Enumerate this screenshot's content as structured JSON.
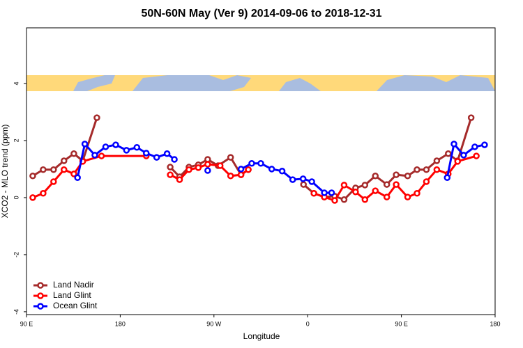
{
  "chart_data": {
    "type": "line",
    "title": "50N-60N May (Ver 9)   2014-09-06 to 2018-12-31",
    "x_label": "Longitude",
    "y_label": "XCO2 - MLO trend (ppm)",
    "xlim": [
      90,
      540
    ],
    "ylim": [
      -4.1,
      5.95
    ],
    "xticks": [
      {
        "value": 90,
        "label": "90 E"
      },
      {
        "value": 180,
        "label": "180"
      },
      {
        "value": 270,
        "label": "90 W"
      },
      {
        "value": 360,
        "label": "0"
      },
      {
        "value": 450,
        "label": "90 E"
      },
      {
        "value": 540,
        "label": "180"
      }
    ],
    "yticks": [
      -4,
      -2,
      0,
      2,
      4
    ],
    "legend": "bottom-left",
    "series": [
      {
        "name": "Land Nadir",
        "color": "#a52a2a",
        "x": [
          96,
          106,
          116,
          126,
          135.5,
          144,
          157.6,
          190,
          228,
          237,
          246,
          255,
          264,
          274,
          286,
          296,
          303,
          330,
          356,
          366,
          376,
          386,
          395,
          406,
          415,
          425,
          436,
          445,
          456,
          465,
          474,
          484,
          495,
          504,
          517
        ],
        "values": [
          0.76,
          0.98,
          0.98,
          1.29,
          1.54,
          1.29,
          2.8,
          null,
          1.07,
          0.73,
          1.07,
          1.15,
          1.34,
          1.12,
          1.41,
          0.8,
          0.98,
          null,
          0.46,
          0.15,
          0.02,
          0.05,
          -0.07,
          0.34,
          0.44,
          0.76,
          0.46,
          0.8,
          0.76,
          0.98,
          0.98,
          1.29,
          1.54,
          1.29,
          2.8
        ]
      },
      {
        "name": "Land Glint",
        "color": "#ff0000",
        "x": [
          96,
          106,
          116,
          126,
          135.5,
          144,
          162,
          205,
          220,
          228,
          237,
          246,
          255,
          264,
          276,
          286,
          296,
          303,
          330,
          366,
          376,
          386,
          395,
          406,
          415,
          425,
          436,
          445,
          456,
          465,
          474,
          484,
          495,
          504,
          522
        ],
        "values": [
          0.0,
          0.15,
          0.56,
          0.98,
          0.83,
          1.27,
          1.46,
          1.46,
          null,
          0.8,
          0.63,
          0.98,
          1.05,
          1.17,
          1.12,
          0.76,
          0.8,
          0.98,
          null,
          0.15,
          0.02,
          -0.1,
          0.44,
          0.2,
          -0.07,
          0.24,
          0.02,
          0.46,
          0.02,
          0.15,
          0.56,
          0.98,
          0.83,
          1.27,
          1.46
        ]
      },
      {
        "name": "Ocean Glint",
        "color": "#0000ff",
        "x": [
          139,
          146,
          155.6,
          166,
          175.7,
          186,
          196,
          205,
          215,
          225,
          232,
          260,
          264,
          280,
          296,
          306.3,
          315,
          325.5,
          335.5,
          345.6,
          355.6,
          364,
          376,
          383,
          450,
          494,
          500.5,
          509.8,
          520.5,
          529.9
        ],
        "values": [
          0.7,
          1.88,
          1.49,
          1.78,
          1.85,
          1.66,
          1.76,
          1.56,
          1.41,
          1.54,
          1.34,
          null,
          0.95,
          null,
          1.0,
          1.2,
          1.2,
          1.0,
          0.93,
          0.63,
          0.66,
          0.56,
          0.17,
          0.17,
          null,
          0.7,
          1.88,
          1.49,
          1.78,
          1.85
        ]
      }
    ]
  }
}
